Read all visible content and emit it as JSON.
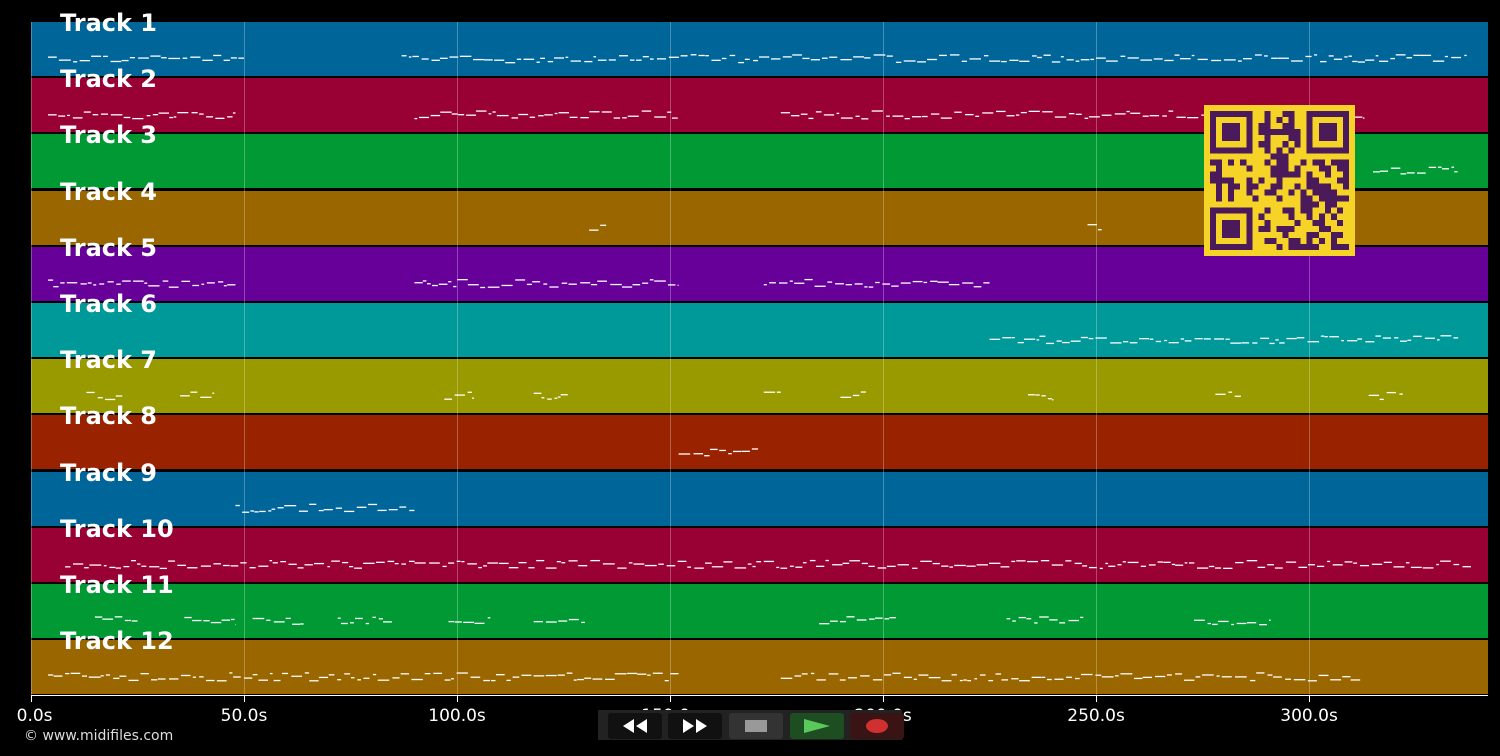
{
  "colors": {
    "background": "#000000",
    "track_palette": [
      "#006699",
      "#990033",
      "#009933",
      "#996600",
      "#660099",
      "#009999",
      "#999900",
      "#992200"
    ],
    "notes": "#ffffff",
    "qr_bg": "#f5d327",
    "qr_fg": "#4a1a5a"
  },
  "tracks": [
    {
      "label": "Track 1",
      "color": "#006699"
    },
    {
      "label": "Track 2",
      "color": "#990033"
    },
    {
      "label": "Track 3",
      "color": "#009933"
    },
    {
      "label": "Track 4",
      "color": "#996600"
    },
    {
      "label": "Track 5",
      "color": "#660099"
    },
    {
      "label": "Track 6",
      "color": "#009999"
    },
    {
      "label": "Track 7",
      "color": "#999900"
    },
    {
      "label": "Track 8",
      "color": "#992200"
    },
    {
      "label": "Track 9",
      "color": "#006699"
    },
    {
      "label": "Track 10",
      "color": "#990033"
    },
    {
      "label": "Track 11",
      "color": "#009933"
    },
    {
      "label": "Track 12",
      "color": "#996600"
    }
  ],
  "timeline": {
    "unit": "s",
    "max_seconds": 342,
    "ticks": [
      {
        "value": 0,
        "label": "0.0s"
      },
      {
        "value": 50,
        "label": "50.0s"
      },
      {
        "value": 100,
        "label": "100.0s"
      },
      {
        "value": 150,
        "label": "150.0s"
      },
      {
        "value": 200,
        "label": "200.0s"
      },
      {
        "value": 250,
        "label": "250.0s"
      },
      {
        "value": 300,
        "label": "300.0s"
      }
    ]
  },
  "note_segments": [
    {
      "track": 0,
      "ranges": [
        [
          4,
          50
        ],
        [
          87,
          337
        ]
      ]
    },
    {
      "track": 1,
      "ranges": [
        [
          4,
          48
        ],
        [
          90,
          152
        ],
        [
          176,
          313
        ]
      ]
    },
    {
      "track": 2,
      "ranges": [
        [
          315,
          335
        ]
      ]
    },
    {
      "track": 3,
      "ranges": [
        [
          131,
          135
        ],
        [
          248,
          252
        ]
      ]
    },
    {
      "track": 4,
      "ranges": [
        [
          4,
          48
        ],
        [
          90,
          152
        ],
        [
          172,
          225
        ]
      ]
    },
    {
      "track": 5,
      "ranges": [
        [
          225,
          335
        ]
      ]
    },
    {
      "track": 6,
      "ranges": [
        [
          13,
          22
        ],
        [
          35,
          43
        ],
        [
          97,
          104
        ],
        [
          118,
          126
        ],
        [
          172,
          176
        ],
        [
          190,
          196
        ],
        [
          234,
          240
        ],
        [
          278,
          284
        ],
        [
          314,
          322
        ]
      ]
    },
    {
      "track": 7,
      "ranges": [
        [
          152,
          171
        ]
      ]
    },
    {
      "track": 8,
      "ranges": [
        [
          48,
          90
        ]
      ]
    },
    {
      "track": 9,
      "ranges": [
        [
          8,
          338
        ]
      ]
    },
    {
      "track": 10,
      "ranges": [
        [
          15,
          25
        ],
        [
          36,
          48
        ],
        [
          52,
          64
        ],
        [
          72,
          85
        ],
        [
          98,
          108
        ],
        [
          118,
          130
        ],
        [
          185,
          203
        ],
        [
          229,
          247
        ],
        [
          273,
          291
        ]
      ]
    },
    {
      "track": 11,
      "ranges": [
        [
          4,
          152
        ],
        [
          176,
          312
        ]
      ]
    }
  ],
  "footer": {
    "text": "© www.midifiles.com"
  },
  "transport": {
    "buttons": [
      {
        "name": "rewind-button",
        "icon": "rewind-icon"
      },
      {
        "name": "fast-forward-button",
        "icon": "fast-forward-icon"
      },
      {
        "name": "stop-button",
        "icon": "stop-icon"
      },
      {
        "name": "play-button",
        "icon": "play-icon"
      },
      {
        "name": "record-button",
        "icon": "record-icon"
      }
    ]
  }
}
